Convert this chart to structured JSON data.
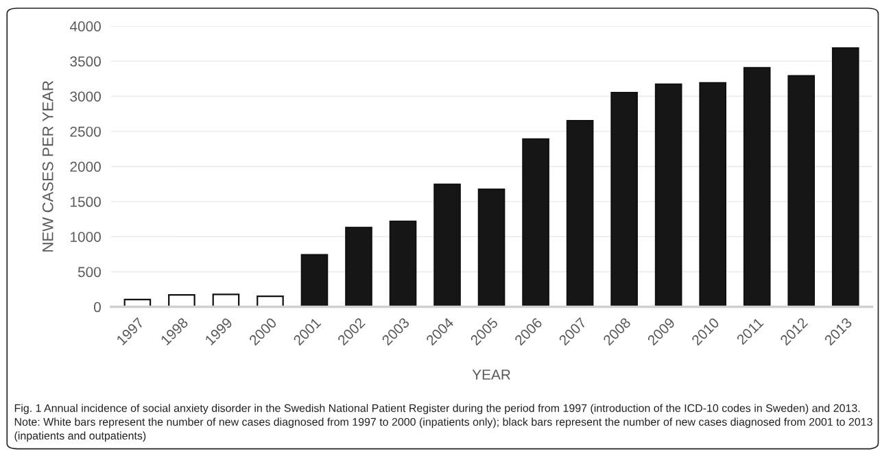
{
  "chart_data": {
    "type": "bar",
    "xlabel": "YEAR",
    "ylabel": "NEW CASES PER YEAR",
    "categories": [
      "1997",
      "1998",
      "1999",
      "2000",
      "2001",
      "2002",
      "2003",
      "2004",
      "2005",
      "2006",
      "2007",
      "2008",
      "2009",
      "2010",
      "2011",
      "2012",
      "2013"
    ],
    "values": [
      105,
      170,
      178,
      150,
      741,
      1130,
      1219,
      1745,
      1674,
      2390,
      2651,
      3051,
      3171,
      3191,
      3407,
      3291,
      3688
    ],
    "colors": [
      "#ffffff",
      "#ffffff",
      "#ffffff",
      "#ffffff",
      "#161616",
      "#161616",
      "#161616",
      "#161616",
      "#161616",
      "#161616",
      "#161616",
      "#161616",
      "#161616",
      "#161616",
      "#161616",
      "#161616",
      "#161616"
    ],
    "ylim": [
      0,
      4000
    ],
    "yticks": [
      0,
      500,
      1000,
      1500,
      2000,
      2500,
      3000,
      3500,
      4000
    ],
    "grid": "y",
    "annotations": [
      "Fig. 1 Annual incidence of social anxiety disorder in the Swedish National Patient Register during the period from 1997 (introduction of the ICD-10 codes in Sweden) and 2013. Note: White bars represent the number of new cases diagnosed from 1997 to 2000 (inpatients only); black bars represent the number of new cases diagnosed from 2001 to 2013 (inpatients and outpatients)"
    ]
  }
}
